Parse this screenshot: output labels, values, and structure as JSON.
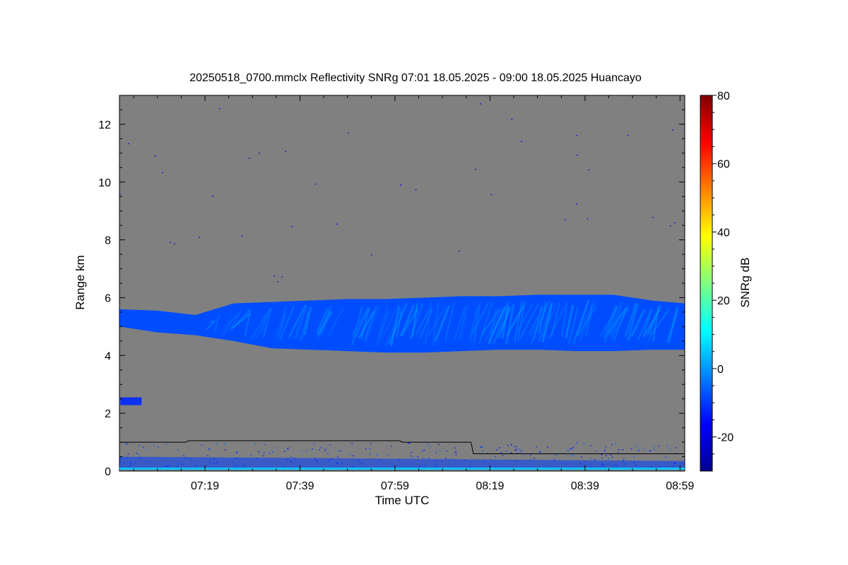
{
  "chart_data": {
    "type": "heatmap",
    "title": "20250518_0700.mmclx Reflectivity SNRg   07:01 18.05.2025 - 09:00 18.05.2025 Huancayo",
    "xlabel": "Time UTC",
    "ylabel": "Range km",
    "colorbar_label": "SNRg dB",
    "x_ticks": [
      "07:19",
      "07:39",
      "07:59",
      "08:19",
      "08:39",
      "08:59"
    ],
    "x_tick_minutes": [
      18,
      38,
      58,
      78,
      98,
      118
    ],
    "x_range_minutes": [
      0,
      119
    ],
    "y_ticks": [
      0,
      2,
      4,
      6,
      8,
      10,
      12
    ],
    "ylim": [
      0,
      13
    ],
    "color_ticks": [
      -20,
      0,
      20,
      40,
      60,
      80
    ],
    "clim": [
      -30,
      80
    ],
    "background_color": "#808080",
    "colormap": [
      "#00008f",
      "#0000ff",
      "#0080ff",
      "#00ffff",
      "#80ff80",
      "#ffff00",
      "#ff8000",
      "#ff0000",
      "#800000"
    ],
    "cloud_layer": {
      "description_units": "x in minutes after 07:01, heights in km",
      "x": [
        0,
        8,
        16,
        24,
        32,
        40,
        48,
        56,
        64,
        72,
        80,
        88,
        96,
        104,
        112,
        119
      ],
      "top": [
        5.6,
        5.55,
        5.4,
        5.8,
        5.85,
        5.9,
        5.95,
        5.95,
        6.0,
        6.05,
        6.05,
        6.1,
        6.1,
        6.1,
        5.9,
        5.8
      ],
      "bottom": [
        5.0,
        4.8,
        4.7,
        4.5,
        4.25,
        4.2,
        4.15,
        4.1,
        4.1,
        4.15,
        4.2,
        4.2,
        4.15,
        4.15,
        4.2,
        4.2
      ],
      "snr_db": -8
    },
    "lower_echo": {
      "x": [
        0,
        119
      ],
      "top": [
        0.5,
        0.35
      ],
      "snr_db": -10
    },
    "detection_line": {
      "x": [
        0,
        14,
        14.5,
        59,
        59.5,
        74,
        74.5,
        119
      ],
      "y": [
        1.0,
        1.0,
        1.05,
        1.05,
        1.0,
        1.0,
        0.6,
        0.6
      ]
    }
  }
}
